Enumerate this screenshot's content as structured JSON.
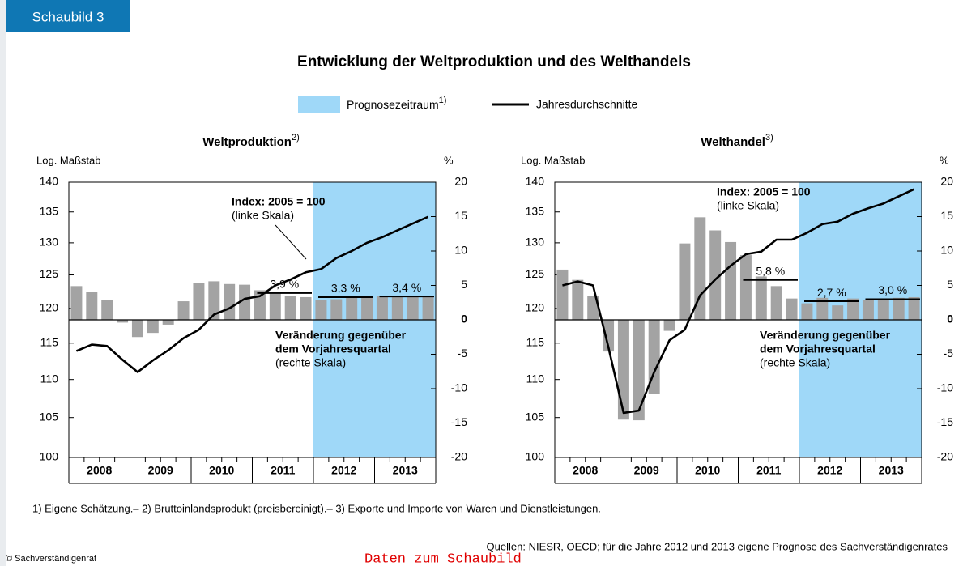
{
  "header": {
    "tab": "Schaubild 3"
  },
  "title": "Entwicklung der Weltproduktion und des Welthandels",
  "legend": [
    {
      "label": "Prognosezeitraum",
      "sup": "1)",
      "color": "#9fd8f8"
    },
    {
      "label": "Jahresdurchschnitte",
      "color": "#000000"
    }
  ],
  "chart_data": [
    {
      "type": "combo",
      "title": "Weltproduktion",
      "title_sup": "2)",
      "ylabel": "Log. Maßstab",
      "y2label": "%",
      "years": [
        "2008",
        "2009",
        "2010",
        "2011",
        "2012",
        "2013"
      ],
      "forecast": [
        false,
        false,
        false,
        false,
        true,
        true
      ],
      "ylim": [
        100,
        140
      ],
      "yticks": [
        100,
        105,
        110,
        115,
        120,
        125,
        130,
        135,
        140
      ],
      "log_scale": true,
      "y2lim": [
        -20,
        20
      ],
      "y2ticks": [
        -20,
        -15,
        -10,
        -5,
        0,
        5,
        10,
        15,
        20
      ],
      "series": [
        {
          "type": "bar",
          "axis": "y2",
          "color": "#a3a3a3",
          "values": [
            4.9,
            4.0,
            2.9,
            -0.4,
            -2.5,
            -1.9,
            -0.7,
            2.7,
            5.4,
            5.6,
            5.2,
            5.1,
            4.3,
            3.9,
            3.5,
            3.3,
            2.9,
            3.0,
            3.3,
            3.5,
            3.5,
            3.4,
            3.4,
            3.4
          ]
        },
        {
          "type": "line",
          "color": "#000000",
          "values": [
            113.9,
            114.8,
            114.6,
            112.7,
            111.0,
            112.6,
            114.0,
            115.7,
            116.9,
            119.1,
            120.0,
            121.4,
            121.8,
            123.4,
            124.3,
            125.4,
            125.9,
            127.6,
            128.7,
            130.0,
            130.9,
            132.0,
            133.1,
            134.2
          ]
        }
      ],
      "annual_average": {
        "values": [
          null,
          null,
          null,
          3.9,
          3.3,
          3.4
        ],
        "value_labels": [
          null,
          null,
          null,
          "3,9 %",
          "3,3 %",
          "3,4 %"
        ]
      },
      "annotations": {
        "index": [
          "Index: 2005 = 100",
          "(linke Skala)"
        ],
        "change": [
          "Veränderung gegenüber",
          "dem Vorjahresquartal",
          "(rechte Skala)"
        ]
      }
    },
    {
      "type": "combo",
      "title": "Welthandel",
      "title_sup": "3)",
      "ylabel": "Log. Maßstab",
      "y2label": "%",
      "years": [
        "2008",
        "2009",
        "2010",
        "2011",
        "2012",
        "2013"
      ],
      "forecast": [
        false,
        false,
        false,
        false,
        true,
        true
      ],
      "ylim": [
        100,
        140
      ],
      "yticks": [
        100,
        105,
        110,
        115,
        120,
        125,
        130,
        135,
        140
      ],
      "log_scale": true,
      "y2lim": [
        -20,
        20
      ],
      "y2ticks": [
        -20,
        -15,
        -10,
        -5,
        0,
        5,
        10,
        15,
        20
      ],
      "series": [
        {
          "type": "bar",
          "axis": "y2",
          "color": "#a3a3a3",
          "values": [
            7.3,
            5.8,
            3.5,
            -4.6,
            -14.5,
            -14.6,
            -10.8,
            -1.6,
            11.1,
            14.9,
            13.0,
            11.3,
            9.4,
            6.3,
            4.9,
            3.1,
            2.4,
            3.2,
            2.1,
            3.1,
            2.9,
            2.9,
            3.2,
            3.3
          ]
        },
        {
          "type": "line",
          "color": "#000000",
          "values": [
            123.4,
            124.0,
            123.4,
            114.5,
            105.6,
            105.9,
            111.0,
            115.4,
            116.9,
            121.9,
            124.3,
            126.4,
            128.2,
            128.6,
            130.5,
            130.5,
            131.6,
            133.0,
            133.4,
            134.7,
            135.6,
            136.4,
            137.6,
            138.8
          ]
        }
      ],
      "annual_average": {
        "values": [
          null,
          null,
          null,
          5.8,
          2.7,
          3.0
        ],
        "value_labels": [
          null,
          null,
          null,
          "5,8 %",
          "2,7 %",
          "3,0 %"
        ]
      },
      "annotations": {
        "index": [
          "Index: 2005 = 100",
          "(linke Skala)"
        ],
        "change": [
          "Veränderung gegenüber",
          "dem Vorjahresquartal",
          "(rechte Skala)"
        ]
      }
    }
  ],
  "footnote": "1) Eigene Schätzung.– 2) Bruttoinlandsprodukt (preisbereinigt).– 3) Exporte und Importe von Waren und Dienstleistungen.",
  "source": "Quellen: NIESR, OECD; für die Jahre 2012 und 2013 eigene Prognose des Sachverständigenrates",
  "copyright": "© Sachverständigenrat",
  "data_link": "Daten zum Schaubild"
}
